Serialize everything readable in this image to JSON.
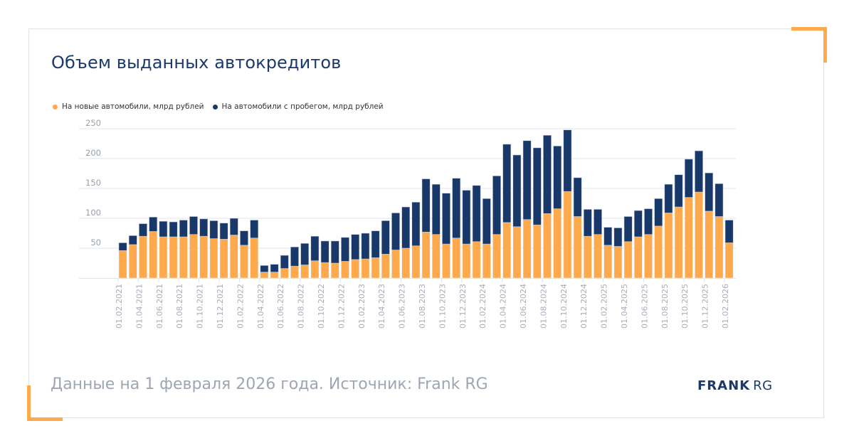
{
  "title": "Объем выданных автокредитов",
  "footer": "Данные на 1 февраля 2026 года. Источник: Frank RG",
  "logo": {
    "bold": "FRANK",
    "light": "RG"
  },
  "colors": {
    "new": "#ffa94d",
    "used": "#173868",
    "accent": "#ffa94d",
    "grid": "#e1e6ef",
    "title": "#1b3a6b"
  },
  "chart_data": {
    "type": "bar",
    "stacked": true,
    "title": "Объем выданных автокредитов",
    "xlabel": "",
    "ylabel": "",
    "ylim": [
      0,
      250
    ],
    "yticks": [
      "250",
      "200",
      "150",
      "100",
      "50"
    ],
    "ytick_values": [
      250,
      200,
      150,
      100,
      50
    ],
    "grid": true,
    "legend_position": "top-left",
    "categories": [
      "01.02.2021",
      "01.03.2021",
      "01.04.2021",
      "01.05.2021",
      "01.06.2021",
      "01.07.2021",
      "01.08.2021",
      "01.09.2021",
      "01.10.2021",
      "01.11.2021",
      "01.12.2021",
      "01.01.2022",
      "01.02.2022",
      "01.03.2022",
      "01.04.2022",
      "01.05.2022",
      "01.06.2022",
      "01.07.2022",
      "01.08.2022",
      "01.09.2022",
      "01.10.2022",
      "01.11.2022",
      "01.12.2022",
      "01.01.2023",
      "01.02.2023",
      "01.03.2023",
      "01.04.2023",
      "01.05.2023",
      "01.06.2023",
      "01.07.2023",
      "01.08.2023",
      "01.09.2023",
      "01.10.2023",
      "01.11.2023",
      "01.12.2023",
      "01.01.2024",
      "01.02.2024",
      "01.03.2024",
      "01.04.2024",
      "01.05.2024",
      "01.06.2024",
      "01.07.2024",
      "01.08.2024",
      "01.09.2024",
      "01.10.2024",
      "01.11.2024",
      "01.12.2024",
      "01.01.2025",
      "01.02.2025",
      "01.03.2025",
      "01.04.2025",
      "01.05.2025",
      "01.06.2025",
      "01.07.2025",
      "01.08.2025",
      "01.09.2025",
      "01.10.2025",
      "01.11.2025",
      "01.12.2025",
      "01.01.2026",
      "01.02.2026"
    ],
    "xtick_labels": [
      "01.02.2021",
      "01.04.2021",
      "01.06.2021",
      "01.08.2021",
      "01.10.2021",
      "01.12.2021",
      "01.02.2022",
      "01.04.2022",
      "01.06.2022",
      "01.08.2022",
      "01.10.2022",
      "01.12.2022",
      "01.02.2023",
      "01.04.2023",
      "01.06.2023",
      "01.08.2023",
      "01.10.2023",
      "01.12.2023",
      "01.02.2024",
      "01.04.2024",
      "01.06.2024",
      "01.08.2024",
      "01.10.2024",
      "01.12.2024",
      "01.02.2025",
      "01.04.2025",
      "01.06.2025",
      "01.08.2025",
      "01.10.2025",
      "01.12.2025",
      "01.02.2026"
    ],
    "series": [
      {
        "name": "На новые автомобили, млрд рублей",
        "color": "#ffa94d",
        "values": [
          46,
          56,
          70,
          78,
          69,
          69,
          69,
          73,
          70,
          66,
          65,
          72,
          55,
          67,
          10,
          10,
          16,
          20,
          22,
          29,
          26,
          25,
          28,
          31,
          32,
          34,
          40,
          47,
          50,
          54,
          77,
          73,
          57,
          67,
          57,
          61,
          57,
          73,
          93,
          86,
          98,
          89,
          108,
          116,
          145,
          103,
          70,
          73,
          55,
          53,
          61,
          69,
          73,
          87,
          109,
          119,
          135,
          144,
          112,
          103,
          59
        ]
      },
      {
        "name": "На автомобили с пробегом, млрд рублей",
        "color": "#173868",
        "values": [
          13,
          15,
          21,
          24,
          26,
          25,
          28,
          30,
          29,
          30,
          27,
          28,
          24,
          30,
          11,
          13,
          22,
          32,
          36,
          41,
          36,
          37,
          40,
          42,
          43,
          45,
          56,
          62,
          69,
          73,
          89,
          84,
          85,
          100,
          90,
          94,
          76,
          98,
          131,
          120,
          132,
          129,
          131,
          105,
          103,
          65,
          45,
          42,
          30,
          31,
          42,
          44,
          43,
          46,
          48,
          54,
          64,
          69,
          64,
          55,
          38
        ]
      }
    ]
  }
}
